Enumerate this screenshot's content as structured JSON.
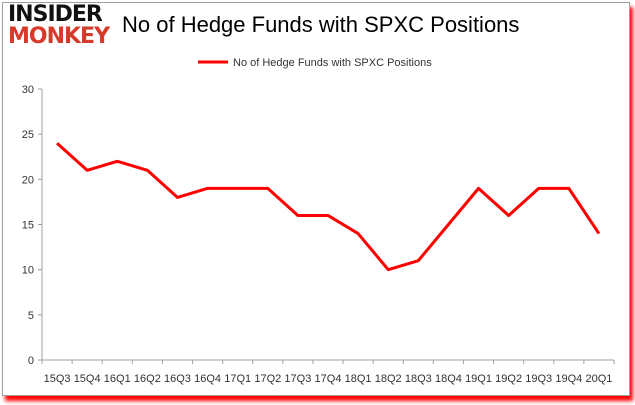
{
  "logo": {
    "line1": "INSIDER",
    "line2": "MONKEY"
  },
  "colors": {
    "series": "#ff0000",
    "axis": "#a0a0a0",
    "text": "#333333"
  },
  "chart_data": {
    "type": "line",
    "title": "No of Hedge Funds with SPXC Positions",
    "xlabel": "",
    "ylabel": "",
    "categories": [
      "15Q3",
      "15Q4",
      "16Q1",
      "16Q2",
      "16Q3",
      "16Q4",
      "17Q1",
      "17Q2",
      "17Q3",
      "17Q4",
      "18Q1",
      "18Q2",
      "18Q3",
      "18Q4",
      "19Q1",
      "19Q2",
      "19Q3",
      "19Q4",
      "20Q1"
    ],
    "series": [
      {
        "name": "No of Hedge Funds with SPXC Positions",
        "values": [
          24,
          21,
          22,
          21,
          18,
          19,
          19,
          19,
          16,
          16,
          14,
          10,
          11,
          15,
          19,
          16,
          19,
          19,
          14
        ]
      }
    ],
    "ylim": [
      0,
      30
    ],
    "yticks": [
      0,
      5,
      10,
      15,
      20,
      25,
      30
    ],
    "grid": false,
    "legend": "top-center"
  }
}
